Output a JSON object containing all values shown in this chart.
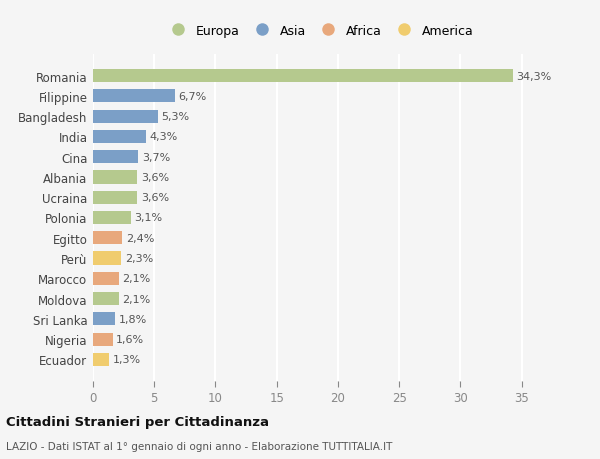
{
  "countries": [
    "Romania",
    "Filippine",
    "Bangladesh",
    "India",
    "Cina",
    "Albania",
    "Ucraina",
    "Polonia",
    "Egitto",
    "Perù",
    "Marocco",
    "Moldova",
    "Sri Lanka",
    "Nigeria",
    "Ecuador"
  ],
  "values": [
    34.3,
    6.7,
    5.3,
    4.3,
    3.7,
    3.6,
    3.6,
    3.1,
    2.4,
    2.3,
    2.1,
    2.1,
    1.8,
    1.6,
    1.3
  ],
  "labels": [
    "34,3%",
    "6,7%",
    "5,3%",
    "4,3%",
    "3,7%",
    "3,6%",
    "3,6%",
    "3,1%",
    "2,4%",
    "2,3%",
    "2,1%",
    "2,1%",
    "1,8%",
    "1,6%",
    "1,3%"
  ],
  "continents": [
    "Europa",
    "Asia",
    "Asia",
    "Asia",
    "Asia",
    "Europa",
    "Europa",
    "Europa",
    "Africa",
    "America",
    "Africa",
    "Europa",
    "Asia",
    "Africa",
    "America"
  ],
  "colors": {
    "Europa": "#b5c98e",
    "Asia": "#7b9fc7",
    "Africa": "#e8a87c",
    "America": "#f0cc6e"
  },
  "legend_order": [
    "Europa",
    "Asia",
    "Africa",
    "America"
  ],
  "title": "Cittadini Stranieri per Cittadinanza",
  "subtitle": "LAZIO - Dati ISTAT al 1° gennaio di ogni anno - Elaborazione TUTTITALIA.IT",
  "xlim": [
    0,
    37
  ],
  "xticks": [
    0,
    5,
    10,
    15,
    20,
    25,
    30,
    35
  ],
  "background_color": "#f5f5f5",
  "grid_color": "#ffffff",
  "bar_height": 0.65,
  "label_fontsize": 8,
  "ytick_fontsize": 8.5,
  "xtick_fontsize": 8.5
}
